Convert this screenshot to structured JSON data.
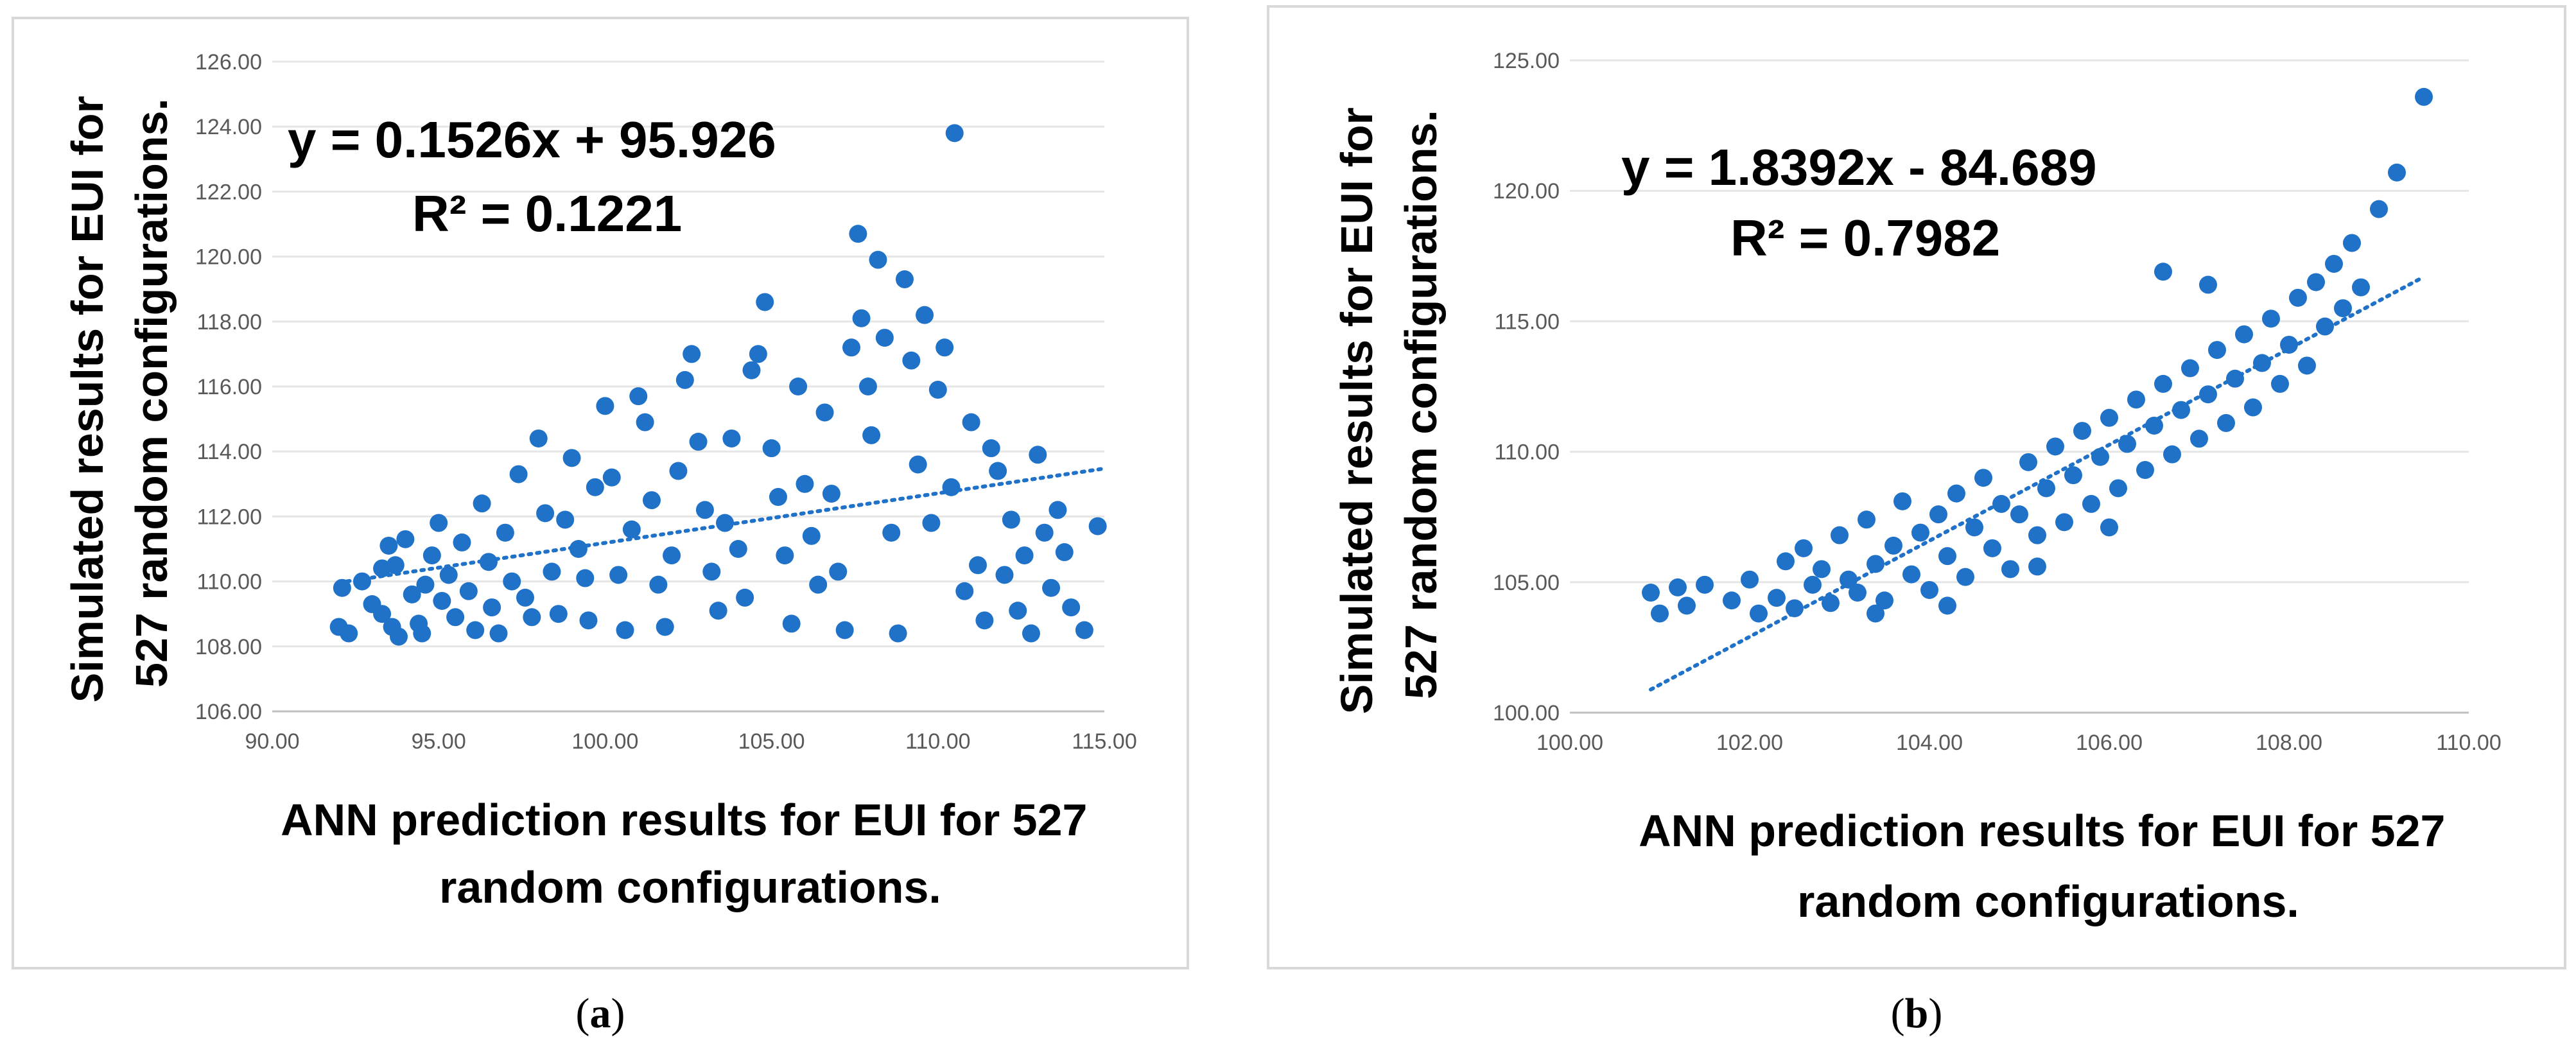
{
  "colors": {
    "marker": "#1f72c8",
    "trendline": "#1f72c8"
  },
  "chart_data": [
    {
      "type": "scatter",
      "panel_label": "a",
      "xlabel_lines": [
        "ANN prediction results for EUI for 527",
        "random configurations."
      ],
      "ylabel_lines": [
        "Simulated results for EUI for",
        "527 random configurations."
      ],
      "xlim": [
        90,
        115
      ],
      "ylim": [
        106,
        126
      ],
      "xticks": [
        "90.00",
        "95.00",
        "100.00",
        "105.00",
        "110.00",
        "115.00"
      ],
      "yticks": [
        "106.00",
        "108.00",
        "110.00",
        "112.00",
        "114.00",
        "116.00",
        "118.00",
        "120.00",
        "122.00",
        "124.00",
        "126.00"
      ],
      "equation": "y = 0.1526x + 95.926",
      "r_squared": "R² = 0.1221",
      "trend": {
        "slope": 0.1526,
        "intercept": 95.926,
        "x_range": [
          92,
          115
        ]
      },
      "points": [
        [
          92,
          108.6
        ],
        [
          92.3,
          108.4
        ],
        [
          92.1,
          109.8
        ],
        [
          92.7,
          110
        ],
        [
          93,
          109.3
        ],
        [
          93.3,
          110.4
        ],
        [
          93.5,
          111.1
        ],
        [
          93.3,
          109
        ],
        [
          93.6,
          108.6
        ],
        [
          93.8,
          108.3
        ],
        [
          93.7,
          110.5
        ],
        [
          94,
          111.3
        ],
        [
          94.2,
          109.6
        ],
        [
          94.4,
          108.7
        ],
        [
          94.6,
          109.9
        ],
        [
          94.8,
          110.8
        ],
        [
          94.5,
          108.4
        ],
        [
          95,
          111.8
        ],
        [
          95.1,
          109.4
        ],
        [
          95.3,
          110.2
        ],
        [
          95.5,
          108.9
        ],
        [
          95.7,
          111.2
        ],
        [
          95.9,
          109.7
        ],
        [
          96.1,
          108.5
        ],
        [
          96.3,
          112.4
        ],
        [
          96.5,
          110.6
        ],
        [
          96.6,
          109.2
        ],
        [
          96.8,
          108.4
        ],
        [
          97,
          111.5
        ],
        [
          97.2,
          110
        ],
        [
          97.4,
          113.3
        ],
        [
          97.6,
          109.5
        ],
        [
          97.8,
          108.9
        ],
        [
          98,
          114.4
        ],
        [
          98.2,
          112.1
        ],
        [
          98.4,
          110.3
        ],
        [
          98.6,
          109
        ],
        [
          98.8,
          111.9
        ],
        [
          99,
          113.8
        ],
        [
          99.2,
          111
        ],
        [
          99.4,
          110.1
        ],
        [
          99.5,
          108.8
        ],
        [
          99.7,
          112.9
        ],
        [
          100,
          115.4
        ],
        [
          100.2,
          113.2
        ],
        [
          100.4,
          110.2
        ],
        [
          100.6,
          108.5
        ],
        [
          100.8,
          111.6
        ],
        [
          101,
          115.7
        ],
        [
          101.2,
          114.9
        ],
        [
          101.4,
          112.5
        ],
        [
          101.6,
          109.9
        ],
        [
          101.8,
          108.6
        ],
        [
          102,
          110.8
        ],
        [
          102.2,
          113.4
        ],
        [
          102.4,
          116.2
        ],
        [
          102.6,
          117
        ],
        [
          102.8,
          114.3
        ],
        [
          103,
          112.2
        ],
        [
          103.2,
          110.3
        ],
        [
          103.4,
          109.1
        ],
        [
          103.6,
          111.8
        ],
        [
          103.8,
          114.4
        ],
        [
          104,
          111
        ],
        [
          104.2,
          109.5
        ],
        [
          104.4,
          116.5
        ],
        [
          104.6,
          117
        ],
        [
          104.8,
          118.6
        ],
        [
          105,
          114.1
        ],
        [
          105.2,
          112.6
        ],
        [
          105.4,
          110.8
        ],
        [
          105.6,
          108.7
        ],
        [
          105.8,
          116
        ],
        [
          106,
          113
        ],
        [
          106.2,
          111.4
        ],
        [
          106.4,
          109.9
        ],
        [
          106.6,
          115.2
        ],
        [
          106.8,
          112.7
        ],
        [
          107,
          110.3
        ],
        [
          107.2,
          108.5
        ],
        [
          107.4,
          117.2
        ],
        [
          107.6,
          120.7
        ],
        [
          107.7,
          118.1
        ],
        [
          107.9,
          116
        ],
        [
          108,
          114.5
        ],
        [
          108.2,
          119.9
        ],
        [
          108.4,
          117.5
        ],
        [
          108.6,
          111.5
        ],
        [
          108.8,
          108.4
        ],
        [
          109,
          119.3
        ],
        [
          109.2,
          116.8
        ],
        [
          109.4,
          113.6
        ],
        [
          109.6,
          118.2
        ],
        [
          109.8,
          111.8
        ],
        [
          110,
          115.9
        ],
        [
          110.2,
          117.2
        ],
        [
          110.4,
          112.9
        ],
        [
          110.5,
          123.8
        ],
        [
          110.8,
          109.7
        ],
        [
          111,
          114.9
        ],
        [
          111.2,
          110.5
        ],
        [
          111.4,
          108.8
        ],
        [
          111.6,
          114.1
        ],
        [
          111.8,
          113.4
        ],
        [
          112,
          110.2
        ],
        [
          112.2,
          111.9
        ],
        [
          112.4,
          109.1
        ],
        [
          112.6,
          110.8
        ],
        [
          112.8,
          108.4
        ],
        [
          113,
          113.9
        ],
        [
          113.2,
          111.5
        ],
        [
          113.4,
          109.8
        ],
        [
          113.6,
          112.2
        ],
        [
          113.8,
          110.9
        ],
        [
          114,
          109.2
        ],
        [
          114.4,
          108.5
        ],
        [
          114.8,
          111.7
        ]
      ]
    },
    {
      "type": "scatter",
      "panel_label": "b",
      "xlabel_lines": [
        "ANN prediction results for EUI for 527",
        "random configurations."
      ],
      "ylabel_lines": [
        "Simulated results for EUI for",
        "527 random configurations."
      ],
      "xlim": [
        100,
        110
      ],
      "ylim": [
        100,
        125
      ],
      "xticks": [
        "100.00",
        "102.00",
        "104.00",
        "106.00",
        "108.00",
        "110.00"
      ],
      "yticks": [
        "100.00",
        "105.00",
        "110.00",
        "115.00",
        "120.00",
        "125.00"
      ],
      "equation": "y = 1.8392x - 84.689",
      "r_squared": "R² = 0.7982",
      "trend": {
        "slope": 1.8392,
        "intercept": -84.689,
        "x_range": [
          100.9,
          109.5
        ]
      },
      "points": [
        [
          100.9,
          104.6
        ],
        [
          101,
          103.8
        ],
        [
          101.2,
          104.8
        ],
        [
          101.3,
          104.1
        ],
        [
          101.5,
          104.9
        ],
        [
          101.8,
          104.3
        ],
        [
          102,
          105.1
        ],
        [
          102.1,
          103.8
        ],
        [
          102.3,
          104.4
        ],
        [
          102.4,
          105.8
        ],
        [
          102.5,
          104
        ],
        [
          102.6,
          106.3
        ],
        [
          102.7,
          104.9
        ],
        [
          102.8,
          105.5
        ],
        [
          102.9,
          104.2
        ],
        [
          103,
          106.8
        ],
        [
          103.1,
          105.1
        ],
        [
          103.2,
          104.6
        ],
        [
          103.3,
          107.4
        ],
        [
          103.4,
          105.7
        ],
        [
          103.5,
          104.3
        ],
        [
          103.6,
          106.4
        ],
        [
          103.7,
          108.1
        ],
        [
          103.8,
          105.3
        ],
        [
          103.9,
          106.9
        ],
        [
          104,
          104.7
        ],
        [
          104.1,
          107.6
        ],
        [
          104.2,
          106
        ],
        [
          104.3,
          108.4
        ],
        [
          104.4,
          105.2
        ],
        [
          104.5,
          107.1
        ],
        [
          104.6,
          109
        ],
        [
          104.7,
          106.3
        ],
        [
          104.8,
          108
        ],
        [
          104.9,
          105.5
        ],
        [
          105,
          107.6
        ],
        [
          105.1,
          109.6
        ],
        [
          105.2,
          106.8
        ],
        [
          105.3,
          108.6
        ],
        [
          105.4,
          110.2
        ],
        [
          105.5,
          107.3
        ],
        [
          105.6,
          109.1
        ],
        [
          105.7,
          110.8
        ],
        [
          105.8,
          108
        ],
        [
          105.9,
          109.8
        ],
        [
          106,
          111.3
        ],
        [
          106.1,
          108.6
        ],
        [
          106.2,
          110.3
        ],
        [
          106.3,
          112
        ],
        [
          106.4,
          109.3
        ],
        [
          106.5,
          111
        ],
        [
          106.6,
          112.6
        ],
        [
          106.7,
          109.9
        ],
        [
          106.8,
          111.6
        ],
        [
          106.9,
          113.2
        ],
        [
          107,
          110.5
        ],
        [
          107.1,
          112.2
        ],
        [
          107.2,
          113.9
        ],
        [
          107.3,
          111.1
        ],
        [
          107.4,
          112.8
        ],
        [
          107.5,
          114.5
        ],
        [
          107.6,
          111.7
        ],
        [
          107.7,
          113.4
        ],
        [
          107.8,
          115.1
        ],
        [
          107.9,
          112.6
        ],
        [
          108,
          114.1
        ],
        [
          108.1,
          115.9
        ],
        [
          108.2,
          113.3
        ],
        [
          108.3,
          116.5
        ],
        [
          108.4,
          114.8
        ],
        [
          108.5,
          117.2
        ],
        [
          108.6,
          115.5
        ],
        [
          108.7,
          118
        ],
        [
          108.8,
          116.3
        ],
        [
          109,
          119.3
        ],
        [
          109.2,
          120.7
        ],
        [
          109.5,
          123.6
        ],
        [
          106.6,
          116.9
        ],
        [
          107.1,
          116.4
        ],
        [
          104.2,
          104.1
        ],
        [
          105.2,
          105.6
        ],
        [
          106,
          107.1
        ],
        [
          103.4,
          103.8
        ]
      ]
    }
  ]
}
